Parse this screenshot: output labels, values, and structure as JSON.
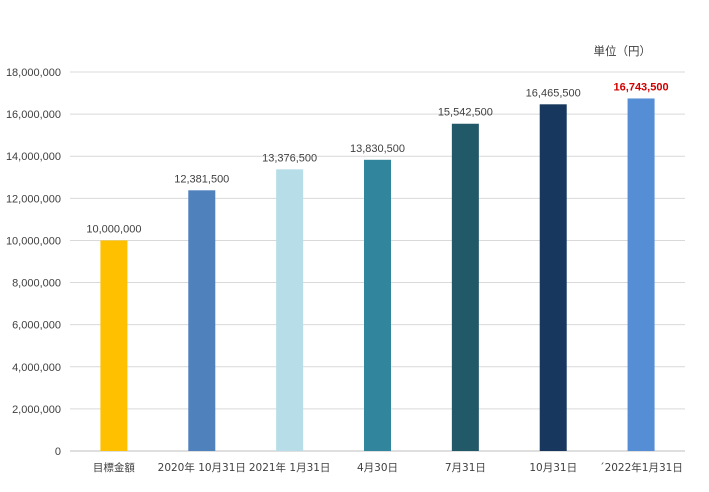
{
  "chart_data": {
    "type": "bar",
    "unit_label": "単位（円）",
    "categories": [
      "目標金額",
      "2020年 10月31日",
      "2021年 1月31日",
      "4月30日",
      "7月31日",
      "10月31日",
      "´2022年1月31日"
    ],
    "values": [
      10000000,
      12381500,
      13376500,
      13830500,
      15542500,
      16465500,
      16743500
    ],
    "value_labels": [
      "10,000,000",
      "12,381,500",
      "13,376,500",
      "13,830,500",
      "15,542,500",
      "16,465,500",
      "16,743,500"
    ],
    "colors": [
      "#ffc000",
      "#4f81bd",
      "#b7dde8",
      "#31859c",
      "#215968",
      "#17375e",
      "#558ed5"
    ],
    "highlight_index": 6,
    "highlight_color": "#d00000",
    "ylim": [
      0,
      18000000
    ],
    "yticks": [
      0,
      2000000,
      4000000,
      6000000,
      8000000,
      10000000,
      12000000,
      14000000,
      16000000,
      18000000
    ],
    "ytick_labels": [
      "0",
      "2,000,000",
      "4,000,000",
      "6,000,000",
      "8,000,000",
      "10,000,000",
      "12,000,000",
      "14,000,000",
      "16,000,000",
      "18,000,000"
    ],
    "grid": true,
    "title": "",
    "xlabel": "",
    "ylabel": ""
  }
}
